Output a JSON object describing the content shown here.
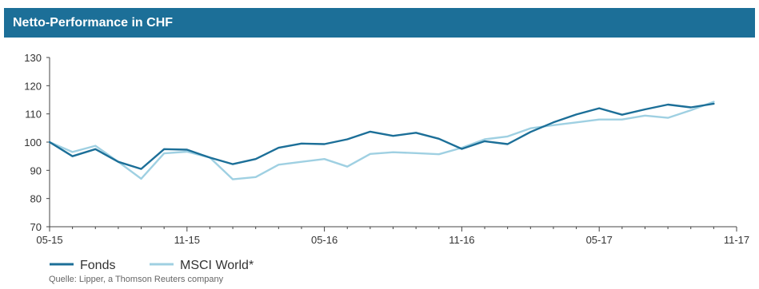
{
  "header": {
    "title": "Netto-Performance in CHF"
  },
  "source": "Quelle: Lipper, a Thomson Reuters company",
  "chart_data": {
    "type": "line",
    "title": "Netto-Performance in CHF",
    "xlabel": "",
    "ylabel": "",
    "x_tick_labels": [
      "05-15",
      "11-15",
      "05-16",
      "11-16",
      "05-17",
      "11-17"
    ],
    "x": [
      "05-15",
      "06-15",
      "07-15",
      "08-15",
      "09-15",
      "10-15",
      "11-15",
      "12-15",
      "01-16",
      "02-16",
      "03-16",
      "04-16",
      "05-16",
      "06-16",
      "07-16",
      "08-16",
      "09-16",
      "10-16",
      "11-16",
      "12-16",
      "01-17",
      "02-17",
      "03-17",
      "04-17",
      "05-17",
      "06-17",
      "07-17",
      "08-17",
      "09-17",
      "10-17"
    ],
    "ylim": [
      70,
      130
    ],
    "yticks": [
      70,
      80,
      90,
      100,
      110,
      120,
      130
    ],
    "grid": false,
    "legend_position": "bottom-left",
    "series": [
      {
        "name": "Fonds",
        "color": "#1c6f98",
        "values": [
          100,
          95,
          97.5,
          93,
          90.5,
          97.5,
          97.3,
          94.5,
          92.2,
          94,
          98,
          99.5,
          99.3,
          101,
          103.7,
          102.2,
          103.3,
          101.2,
          97.6,
          100.3,
          99.3,
          103.6,
          107,
          109.8,
          112,
          109.7,
          111.6,
          113.3,
          112.3,
          113.6
        ]
      },
      {
        "name": "MSCI World*",
        "color": "#9fd0e2",
        "values": [
          100,
          96.5,
          98.7,
          93,
          87,
          96,
          96.6,
          94.5,
          86.8,
          87.6,
          92,
          93,
          94,
          91.3,
          95.8,
          96.4,
          96.1,
          95.7,
          98,
          101,
          102,
          104.9,
          106,
          107,
          108,
          108,
          109.4,
          108.6,
          111.3,
          114.3
        ]
      }
    ]
  }
}
